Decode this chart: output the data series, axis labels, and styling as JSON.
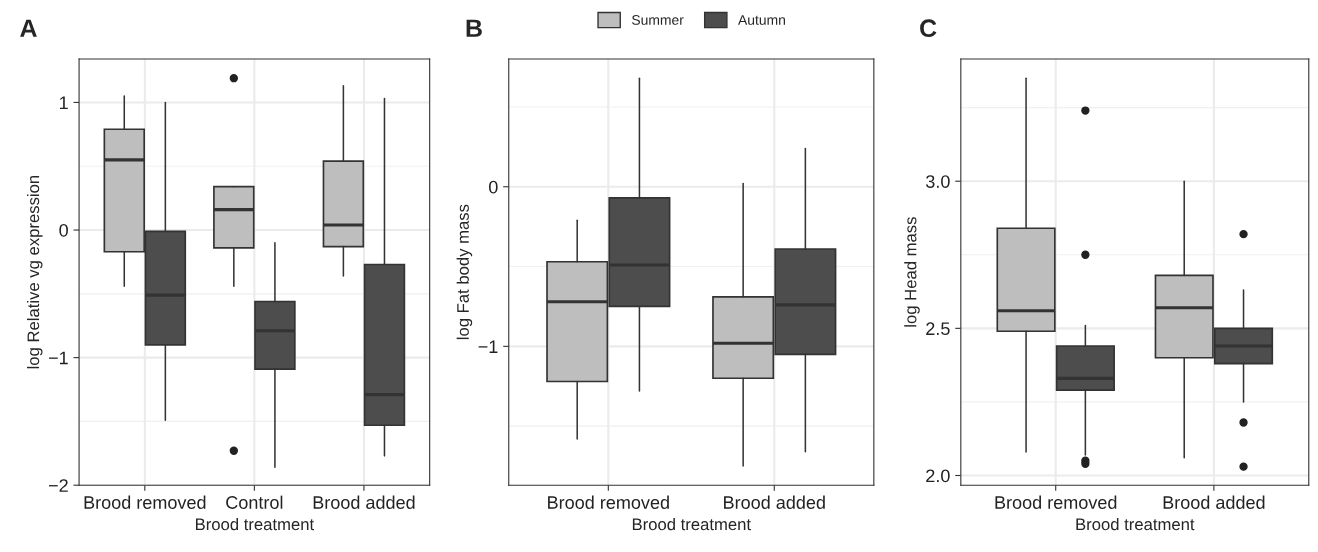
{
  "chart_data": [
    {
      "type": "box",
      "title": "A",
      "xlabel": "Brood treatment",
      "ylabel": "log Relative vg expression",
      "categories": [
        "Brood removed",
        "Control",
        "Brood added"
      ],
      "ylim": [
        -2.0,
        1.34
      ],
      "yticks": [
        {
          "value": -2,
          "label": "−2"
        },
        {
          "value": -1,
          "label": "−1"
        },
        0,
        1
      ],
      "grid": true,
      "legend": "top",
      "series": [
        {
          "name": "Summer",
          "color": "#bebebe",
          "boxes": [
            {
              "low": -0.44,
              "q1": -0.17,
              "median": 0.55,
              "q3": 0.79,
              "high": 1.05
            },
            {
              "low": -0.44,
              "q1": -0.14,
              "median": 0.16,
              "q3": 0.34,
              "high": 0.34,
              "outliers": [
                1.19,
                -1.73
              ]
            },
            {
              "low": -0.36,
              "q1": -0.13,
              "median": 0.04,
              "q3": 0.54,
              "high": 1.13
            }
          ]
        },
        {
          "name": "Autumn",
          "color": "#4d4d4d",
          "boxes": [
            {
              "low": -1.49,
              "q1": -0.9,
              "median": -0.51,
              "q3": -0.01,
              "high": 1.0
            },
            {
              "low": -1.86,
              "q1": -1.09,
              "median": -0.79,
              "q3": -0.56,
              "high": -0.1
            },
            {
              "low": -1.77,
              "q1": -1.53,
              "median": -1.29,
              "q3": -0.27,
              "high": 1.03
            }
          ]
        }
      ]
    },
    {
      "type": "box",
      "title": "B",
      "xlabel": "Brood treatment",
      "ylabel": "log Fat body mass",
      "categories": [
        "Brood removed",
        "Brood added"
      ],
      "ylim": [
        -1.87,
        0.8
      ],
      "yticks": [
        {
          "value": -1,
          "label": "−1"
        },
        0
      ],
      "grid": true,
      "legend": "top",
      "series": [
        {
          "name": "Summer",
          "color": "#bebebe",
          "boxes": [
            {
              "low": -1.58,
              "q1": -1.22,
              "median": -0.72,
              "q3": -0.47,
              "high": -0.21
            },
            {
              "low": -1.75,
              "q1": -1.2,
              "median": -0.98,
              "q3": -0.69,
              "high": 0.02
            }
          ]
        },
        {
          "name": "Autumn",
          "color": "#4d4d4d",
          "boxes": [
            {
              "low": -1.28,
              "q1": -0.75,
              "median": -0.49,
              "q3": -0.07,
              "high": 0.68
            },
            {
              "low": -1.66,
              "q1": -1.05,
              "median": -0.74,
              "q3": -0.39,
              "high": 0.24
            }
          ]
        }
      ]
    },
    {
      "type": "box",
      "title": "C",
      "xlabel": "Brood treatment",
      "ylabel": "log Head mass",
      "categories": [
        "Brood removed",
        "Brood added"
      ],
      "ylim": [
        1.967,
        3.415
      ],
      "yticks": [
        {
          "value": 2,
          "label": "2.0"
        },
        2.5,
        {
          "value": 3,
          "label": "3.0"
        }
      ],
      "grid": true,
      "legend": "top",
      "series": [
        {
          "name": "Summer",
          "color": "#bebebe",
          "boxes": [
            {
              "low": 2.08,
              "q1": 2.49,
              "median": 2.56,
              "q3": 2.84,
              "high": 3.35
            },
            {
              "low": 2.06,
              "q1": 2.4,
              "median": 2.57,
              "q3": 2.68,
              "high": 3.0
            }
          ]
        },
        {
          "name": "Autumn",
          "color": "#4d4d4d",
          "boxes": [
            {
              "low": 2.07,
              "q1": 2.29,
              "median": 2.33,
              "q3": 2.44,
              "high": 2.51,
              "outliers": [
                3.24,
                2.75,
                2.05,
                2.04
              ]
            },
            {
              "low": 2.25,
              "q1": 2.38,
              "median": 2.44,
              "q3": 2.5,
              "high": 2.63,
              "outliers": [
                2.82,
                2.18,
                2.03
              ]
            }
          ]
        }
      ]
    }
  ]
}
